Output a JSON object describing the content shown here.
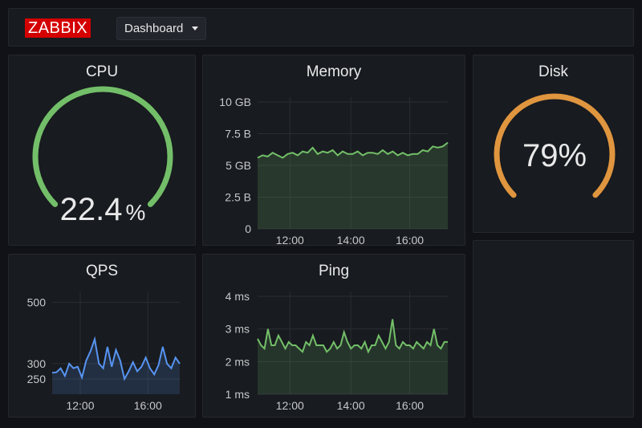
{
  "topbar": {
    "logo": "ZABBIX",
    "dashboard_selector": "Dashboard",
    "caret_icon": "chevron-down-icon"
  },
  "colors": {
    "background": "#111217",
    "panel": "#181b1f",
    "green": "#73bf69",
    "orange": "#e0953f",
    "blue": "#5794f2",
    "logo_red": "#d40000"
  },
  "panels": {
    "cpu": {
      "title": "CPU",
      "value": "22.4",
      "unit": "%",
      "fraction": 0.224,
      "color": "#73bf69"
    },
    "memory": {
      "title": "Memory",
      "y_ticks": [
        "10 GB",
        "7.5 B",
        "5 GB",
        "2.5 B",
        "0"
      ],
      "x_ticks": [
        "12:00",
        "14:00",
        "16:00"
      ],
      "color": "#73bf69"
    },
    "disk": {
      "title": "Disk",
      "value": "79%",
      "fraction": 0.79,
      "color": "#e0953f"
    },
    "qps": {
      "title": "QPS",
      "y_ticks": [
        "500",
        "300",
        "250"
      ],
      "x_ticks": [
        "12:00",
        "16:00"
      ],
      "color": "#5794f2"
    },
    "ping": {
      "title": "Ping",
      "y_ticks": [
        "4 ms",
        "3 ms",
        "2 ms",
        "1 ms"
      ],
      "x_ticks": [
        "12:00",
        "14:00",
        "16:00"
      ],
      "color": "#73bf69"
    }
  },
  "chart_data": [
    {
      "type": "area",
      "title": "Memory",
      "unit": "GB",
      "ylim": [
        0,
        10
      ],
      "x": [
        "11:00",
        "11:10",
        "11:20",
        "11:30",
        "11:40",
        "11:50",
        "12:00",
        "12:10",
        "12:20",
        "12:30",
        "12:40",
        "12:50",
        "13:00",
        "13:10",
        "13:20",
        "13:30",
        "13:40",
        "13:50",
        "14:00",
        "14:10",
        "14:20",
        "14:30",
        "14:40",
        "14:50",
        "15:00",
        "15:10",
        "15:20",
        "15:30",
        "15:40",
        "15:50",
        "16:00",
        "16:10",
        "16:20",
        "16:30",
        "16:40",
        "16:50",
        "17:00",
        "17:10",
        "17:20"
      ],
      "values": [
        5.6,
        5.8,
        5.7,
        6.0,
        5.8,
        5.6,
        5.9,
        6.0,
        5.8,
        6.1,
        6.0,
        6.4,
        5.9,
        6.1,
        6.0,
        6.2,
        5.8,
        6.1,
        5.9,
        5.9,
        6.1,
        5.8,
        6.0,
        6.0,
        5.9,
        6.2,
        5.9,
        6.1,
        5.8,
        6.0,
        5.8,
        5.9,
        5.9,
        6.2,
        6.1,
        6.5,
        6.4,
        6.5,
        6.8
      ]
    },
    {
      "type": "area",
      "title": "QPS",
      "ylim": [
        200,
        520
      ],
      "x": [
        "11:00",
        "11:12",
        "11:24",
        "11:36",
        "11:48",
        "12:00",
        "12:12",
        "12:24",
        "12:36",
        "12:48",
        "13:00",
        "13:12",
        "13:24",
        "13:36",
        "13:48",
        "14:00",
        "14:12",
        "14:24",
        "14:36",
        "14:48",
        "15:00",
        "15:12",
        "15:24",
        "15:36",
        "15:48",
        "16:00",
        "16:12",
        "16:24",
        "16:36",
        "16:48",
        "17:00"
      ],
      "values": [
        270,
        272,
        285,
        260,
        300,
        285,
        290,
        255,
        310,
        340,
        380,
        300,
        285,
        355,
        290,
        345,
        310,
        250,
        275,
        305,
        275,
        290,
        320,
        285,
        265,
        295,
        355,
        300,
        285,
        320,
        300
      ]
    },
    {
      "type": "line",
      "title": "Ping",
      "unit": "ms",
      "ylim": [
        1,
        4
      ],
      "x": [
        "11:00",
        "11:07",
        "11:14",
        "11:21",
        "11:28",
        "11:35",
        "11:42",
        "11:49",
        "11:56",
        "12:03",
        "12:10",
        "12:17",
        "12:24",
        "12:31",
        "12:38",
        "12:45",
        "12:52",
        "12:59",
        "13:06",
        "13:13",
        "13:20",
        "13:27",
        "13:34",
        "13:41",
        "13:48",
        "13:55",
        "14:02",
        "14:09",
        "14:16",
        "14:23",
        "14:30",
        "14:37",
        "14:44",
        "14:51",
        "14:58",
        "15:05",
        "15:12",
        "15:19",
        "15:26",
        "15:33",
        "15:40",
        "15:47",
        "15:54",
        "16:01",
        "16:08",
        "16:15",
        "16:22",
        "16:29",
        "16:36",
        "16:43",
        "16:50",
        "16:57",
        "17:04",
        "17:11",
        "17:18",
        "17:25"
      ],
      "values": [
        2.7,
        2.5,
        2.4,
        3.0,
        2.5,
        2.5,
        2.8,
        2.6,
        2.4,
        2.6,
        2.5,
        2.5,
        2.4,
        2.3,
        2.6,
        2.5,
        2.8,
        2.5,
        2.5,
        2.5,
        2.3,
        2.4,
        2.6,
        2.4,
        2.5,
        2.9,
        2.6,
        2.4,
        2.5,
        2.5,
        2.4,
        2.6,
        2.3,
        2.5,
        2.5,
        2.8,
        2.6,
        2.4,
        2.6,
        3.3,
        2.5,
        2.4,
        2.6,
        2.5,
        2.5,
        2.4,
        2.6,
        2.5,
        2.4,
        2.6,
        2.5,
        3.0,
        2.5,
        2.4,
        2.6,
        2.6
      ]
    }
  ]
}
